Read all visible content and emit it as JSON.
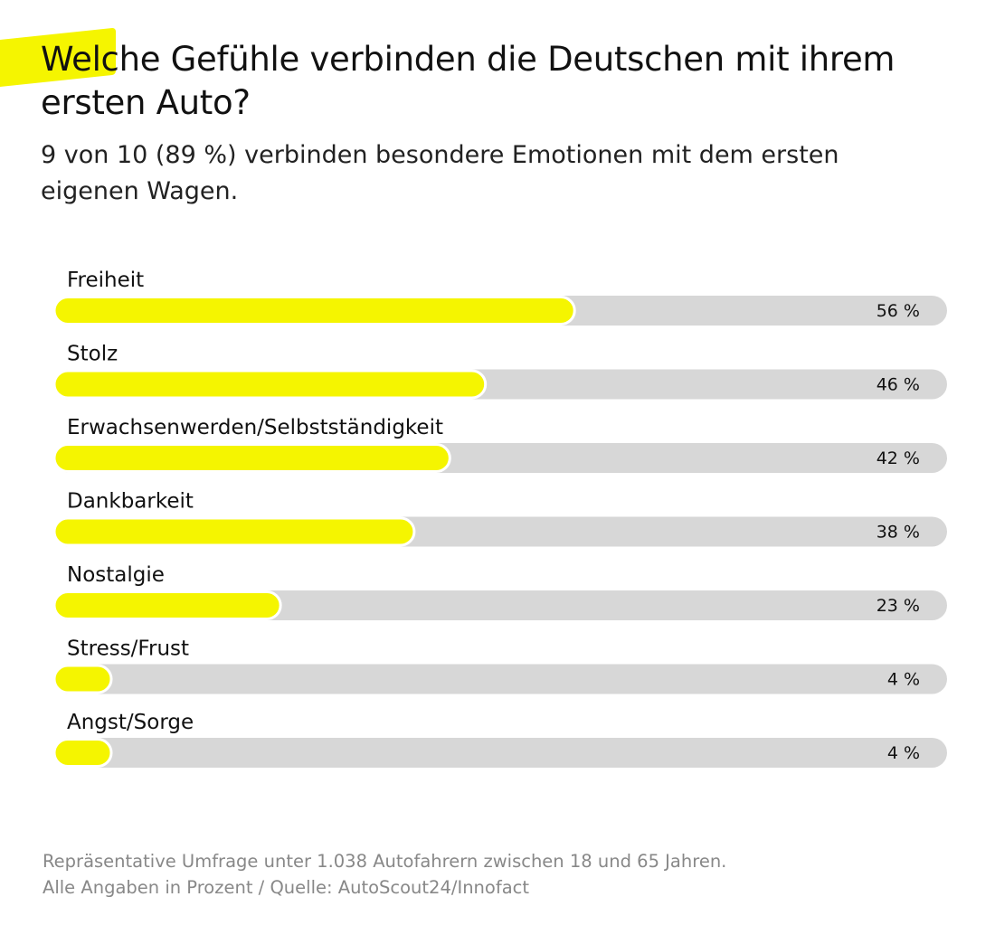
{
  "title": "Welche Gefühle verbinden die Deutschen mit ihrem ersten Auto?",
  "subtitle": "9 von 10 (89 %) verbinden besondere Emotionen mit dem ersten eigenen Wagen.",
  "footnote": [
    "Repräsentative Umfrage unter 1.038 Autofahrern zwischen 18 und 65 Jahren.",
    "Alle Angaben in Prozent / Quelle: AutoScout24/Innofact"
  ],
  "colors": {
    "bar": "#f5f500",
    "track": "#d7d7d7",
    "highlight": "#f5f500"
  },
  "chart_data": {
    "type": "bar",
    "orientation": "horizontal",
    "categories": [
      "Freiheit",
      "Stolz",
      "Erwachsenwerden/Selbstständigkeit",
      "Dankbarkeit",
      "Nostalgie",
      "Stress/Frust",
      "Angst/Sorge"
    ],
    "values": [
      56,
      46,
      42,
      38,
      23,
      4,
      4
    ],
    "value_labels": [
      "56 %",
      "46 %",
      "42 %",
      "38 %",
      "23 %",
      "4 %",
      "4 %"
    ],
    "unit": "%",
    "xlim": [
      0,
      100
    ],
    "grid": false,
    "legend": "none"
  }
}
